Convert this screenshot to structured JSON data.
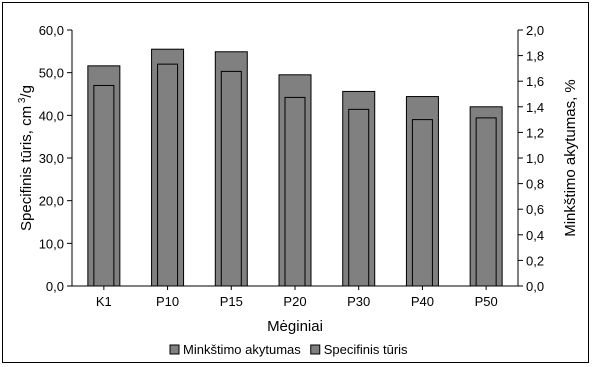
{
  "chart_data": {
    "type": "bar",
    "title": "",
    "categories": [
      "K1",
      "P10",
      "P15",
      "P20",
      "P30",
      "P40",
      "P50"
    ],
    "xlabel": "Mėginiai",
    "series": [
      {
        "name": "Minkštimo akytumas",
        "axis": "right",
        "color": "#808080",
        "values": [
          1.72,
          1.85,
          1.83,
          1.65,
          1.52,
          1.48,
          1.4
        ]
      },
      {
        "name": "Specifinis tūris",
        "axis": "left",
        "color": "#808080",
        "values": [
          47.0,
          52.0,
          50.3,
          44.2,
          41.4,
          39.0,
          39.4
        ]
      }
    ],
    "y_left": {
      "label": "Specifinis tūris, cm³/g",
      "label_main": "Specifinis tūris, cm",
      "label_sup": "3",
      "label_end": "/g",
      "range": [
        0,
        60
      ],
      "ticks": [
        "0,0",
        "10,0",
        "20,0",
        "30,0",
        "40,0",
        "50,0",
        "60,0"
      ]
    },
    "y_right": {
      "label": "Minkštimo akytumas, %",
      "range": [
        0,
        2.0
      ],
      "ticks": [
        "0,0",
        "0,2",
        "0,4",
        "0,6",
        "0,8",
        "1,0",
        "1,2",
        "1,4",
        "1,6",
        "1,8",
        "2,0"
      ]
    },
    "grid": false,
    "legend_position": "bottom"
  }
}
